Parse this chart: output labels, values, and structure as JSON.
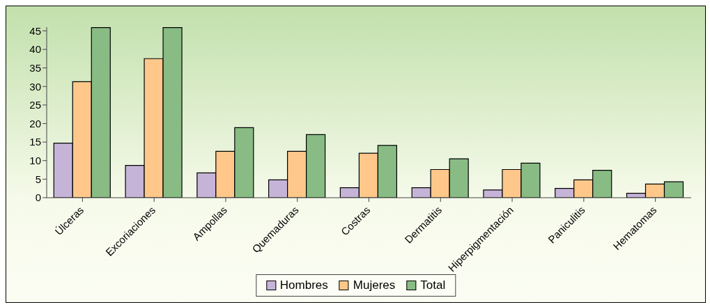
{
  "chart_data": {
    "type": "bar",
    "categories": [
      "Úlceras",
      "Excoriaciones",
      "Ampollas",
      "Quemaduras",
      "Costras",
      "Dermatitis",
      "Hiperpigmentación",
      "Paniculitis",
      "Hematomas"
    ],
    "series": [
      {
        "name": "Hombres",
        "color": "#c6b4d8",
        "values": [
          14.7,
          8.7,
          6.7,
          4.8,
          2.7,
          2.7,
          2.1,
          2.5,
          1.2
        ]
      },
      {
        "name": "Mujeres",
        "color": "#ffc88a",
        "values": [
          31.3,
          37.5,
          12.5,
          12.5,
          12.0,
          7.6,
          7.6,
          4.8,
          3.7
        ]
      },
      {
        "name": "Total",
        "color": "#88bc84",
        "values": [
          45.9,
          45.9,
          18.9,
          17.0,
          14.1,
          10.5,
          9.3,
          7.4,
          4.3
        ]
      }
    ],
    "ylim": [
      0,
      46
    ],
    "yticks": [
      0,
      5,
      10,
      15,
      20,
      25,
      30,
      35,
      40,
      45
    ],
    "grid": false,
    "legend": "bottom"
  }
}
